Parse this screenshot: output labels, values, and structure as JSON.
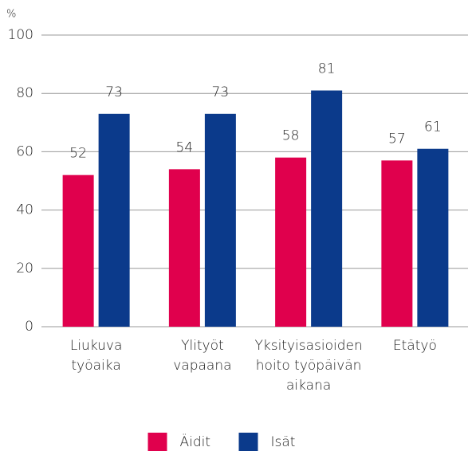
{
  "chart_data": {
    "type": "bar",
    "y_label": "%",
    "categories": [
      [
        "Liukuva",
        "työaika"
      ],
      [
        "Ylityöt",
        "vapaana"
      ],
      [
        "Yksityisasioiden",
        "hoito työpäivän",
        "aikana"
      ],
      [
        "Etätyö"
      ]
    ],
    "series": [
      {
        "name": "Äidit",
        "color": "#e0004d",
        "values": [
          52,
          54,
          58,
          57
        ]
      },
      {
        "name": "Isät",
        "color": "#0b3a8b",
        "values": [
          73,
          73,
          81,
          61
        ]
      }
    ],
    "ylim": [
      0,
      100
    ],
    "yticks": [
      0,
      20,
      40,
      60,
      80,
      100
    ],
    "grid": true,
    "legend": "bottom"
  }
}
